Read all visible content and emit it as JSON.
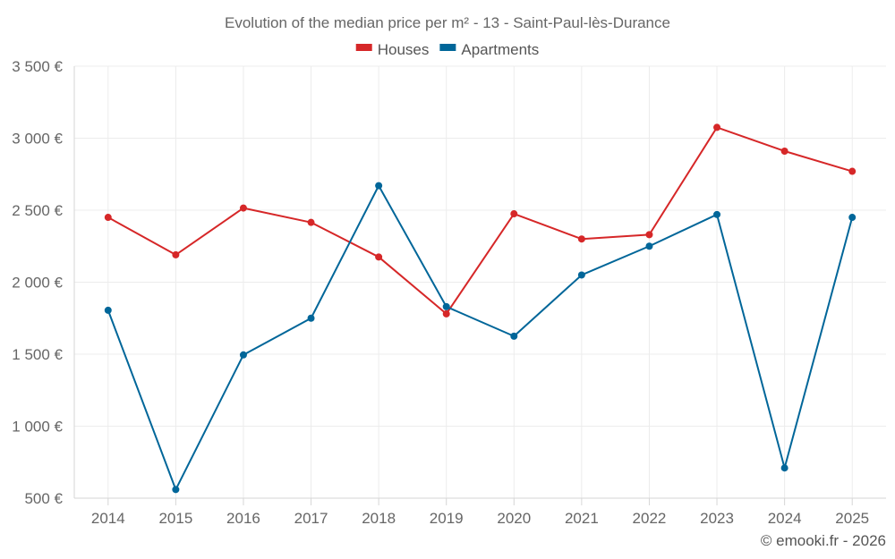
{
  "chart_data": {
    "type": "line",
    "title": "Evolution of the median price per m² - 13 - Saint-Paul-lès-Durance",
    "categories": [
      "2014",
      "2015",
      "2016",
      "2017",
      "2018",
      "2019",
      "2020",
      "2021",
      "2022",
      "2023",
      "2024",
      "2025"
    ],
    "series": [
      {
        "name": "Houses",
        "color": "#d62728",
        "values": [
          2450,
          2190,
          2515,
          2415,
          2175,
          1780,
          2475,
          2300,
          2330,
          3075,
          2910,
          2770
        ]
      },
      {
        "name": "Apartments",
        "color": "#006699",
        "values": [
          1805,
          560,
          1495,
          1750,
          2670,
          1830,
          1625,
          2050,
          2250,
          2470,
          710,
          2450
        ]
      }
    ],
    "ylim": [
      500,
      3500
    ],
    "yticks": [
      500,
      1000,
      1500,
      2000,
      2500,
      3000,
      3500
    ],
    "ytick_labels": [
      "500 €",
      "1 000 €",
      "1 500 €",
      "2 000 €",
      "2 500 €",
      "3 000 €",
      "3 500 €"
    ],
    "xlabel": "",
    "ylabel": "",
    "grid": true,
    "legend_position": "top-center"
  },
  "footer": {
    "credit": "© emooki.fr - 2026"
  }
}
